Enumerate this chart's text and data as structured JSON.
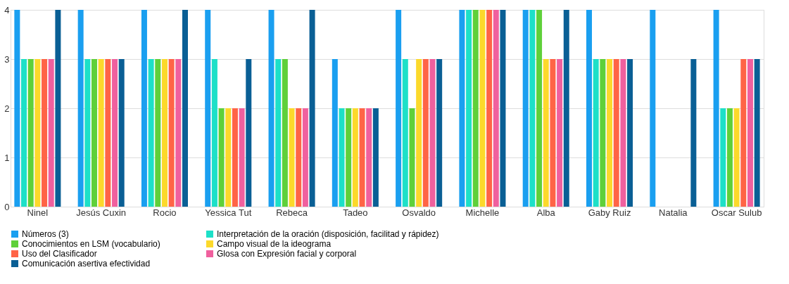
{
  "chart_data": {
    "type": "bar",
    "categories": [
      "Ninel",
      "Jesús Cuxin",
      "Rocio",
      "Yessica  Tut",
      "Rebeca",
      "Tadeo",
      "Osvaldo",
      "Michelle",
      "Alba",
      "Gaby Ruiz",
      "Natalia",
      "Oscar Sulub"
    ],
    "series": [
      {
        "name": "Números  (3)",
        "color": "#1a9ff0",
        "values": [
          4,
          4,
          4,
          4,
          4,
          3,
          4,
          4,
          4,
          4,
          4,
          4
        ]
      },
      {
        "name": "Interpretación de la oración (disposición,  facilitad  y  rápidez)",
        "color": "#1de0c8",
        "values": [
          3,
          3,
          3,
          3,
          3,
          2,
          3,
          4,
          4,
          3,
          null,
          2
        ]
      },
      {
        "name": "Conocimientos en  LSM (vocabulario)",
        "color": "#5fd03a",
        "values": [
          3,
          3,
          3,
          2,
          3,
          2,
          2,
          4,
          4,
          3,
          null,
          2
        ]
      },
      {
        "name": "Campo visual de la  ideograma",
        "color": "#fcd92b",
        "values": [
          3,
          3,
          3,
          2,
          2,
          2,
          3,
          4,
          3,
          3,
          null,
          2
        ]
      },
      {
        "name": "Uso del Clasificador",
        "color": "#ff6446",
        "values": [
          3,
          3,
          3,
          2,
          2,
          2,
          3,
          4,
          3,
          3,
          null,
          3
        ]
      },
      {
        "name": "Glosa  con  Expresión facial y  corporal",
        "color": "#f0609e",
        "values": [
          3,
          3,
          3,
          2,
          2,
          2,
          3,
          4,
          3,
          3,
          null,
          3
        ]
      },
      {
        "name": "Comunicación  asertiva efectividad",
        "color": "#0a5f95",
        "values": [
          4,
          3,
          4,
          3,
          4,
          2,
          3,
          4,
          4,
          3,
          3,
          3
        ]
      }
    ],
    "ylim": [
      0,
      4
    ],
    "yticks": [
      0,
      1,
      2,
      3,
      4
    ],
    "grid": "y",
    "legend": "bottom"
  }
}
